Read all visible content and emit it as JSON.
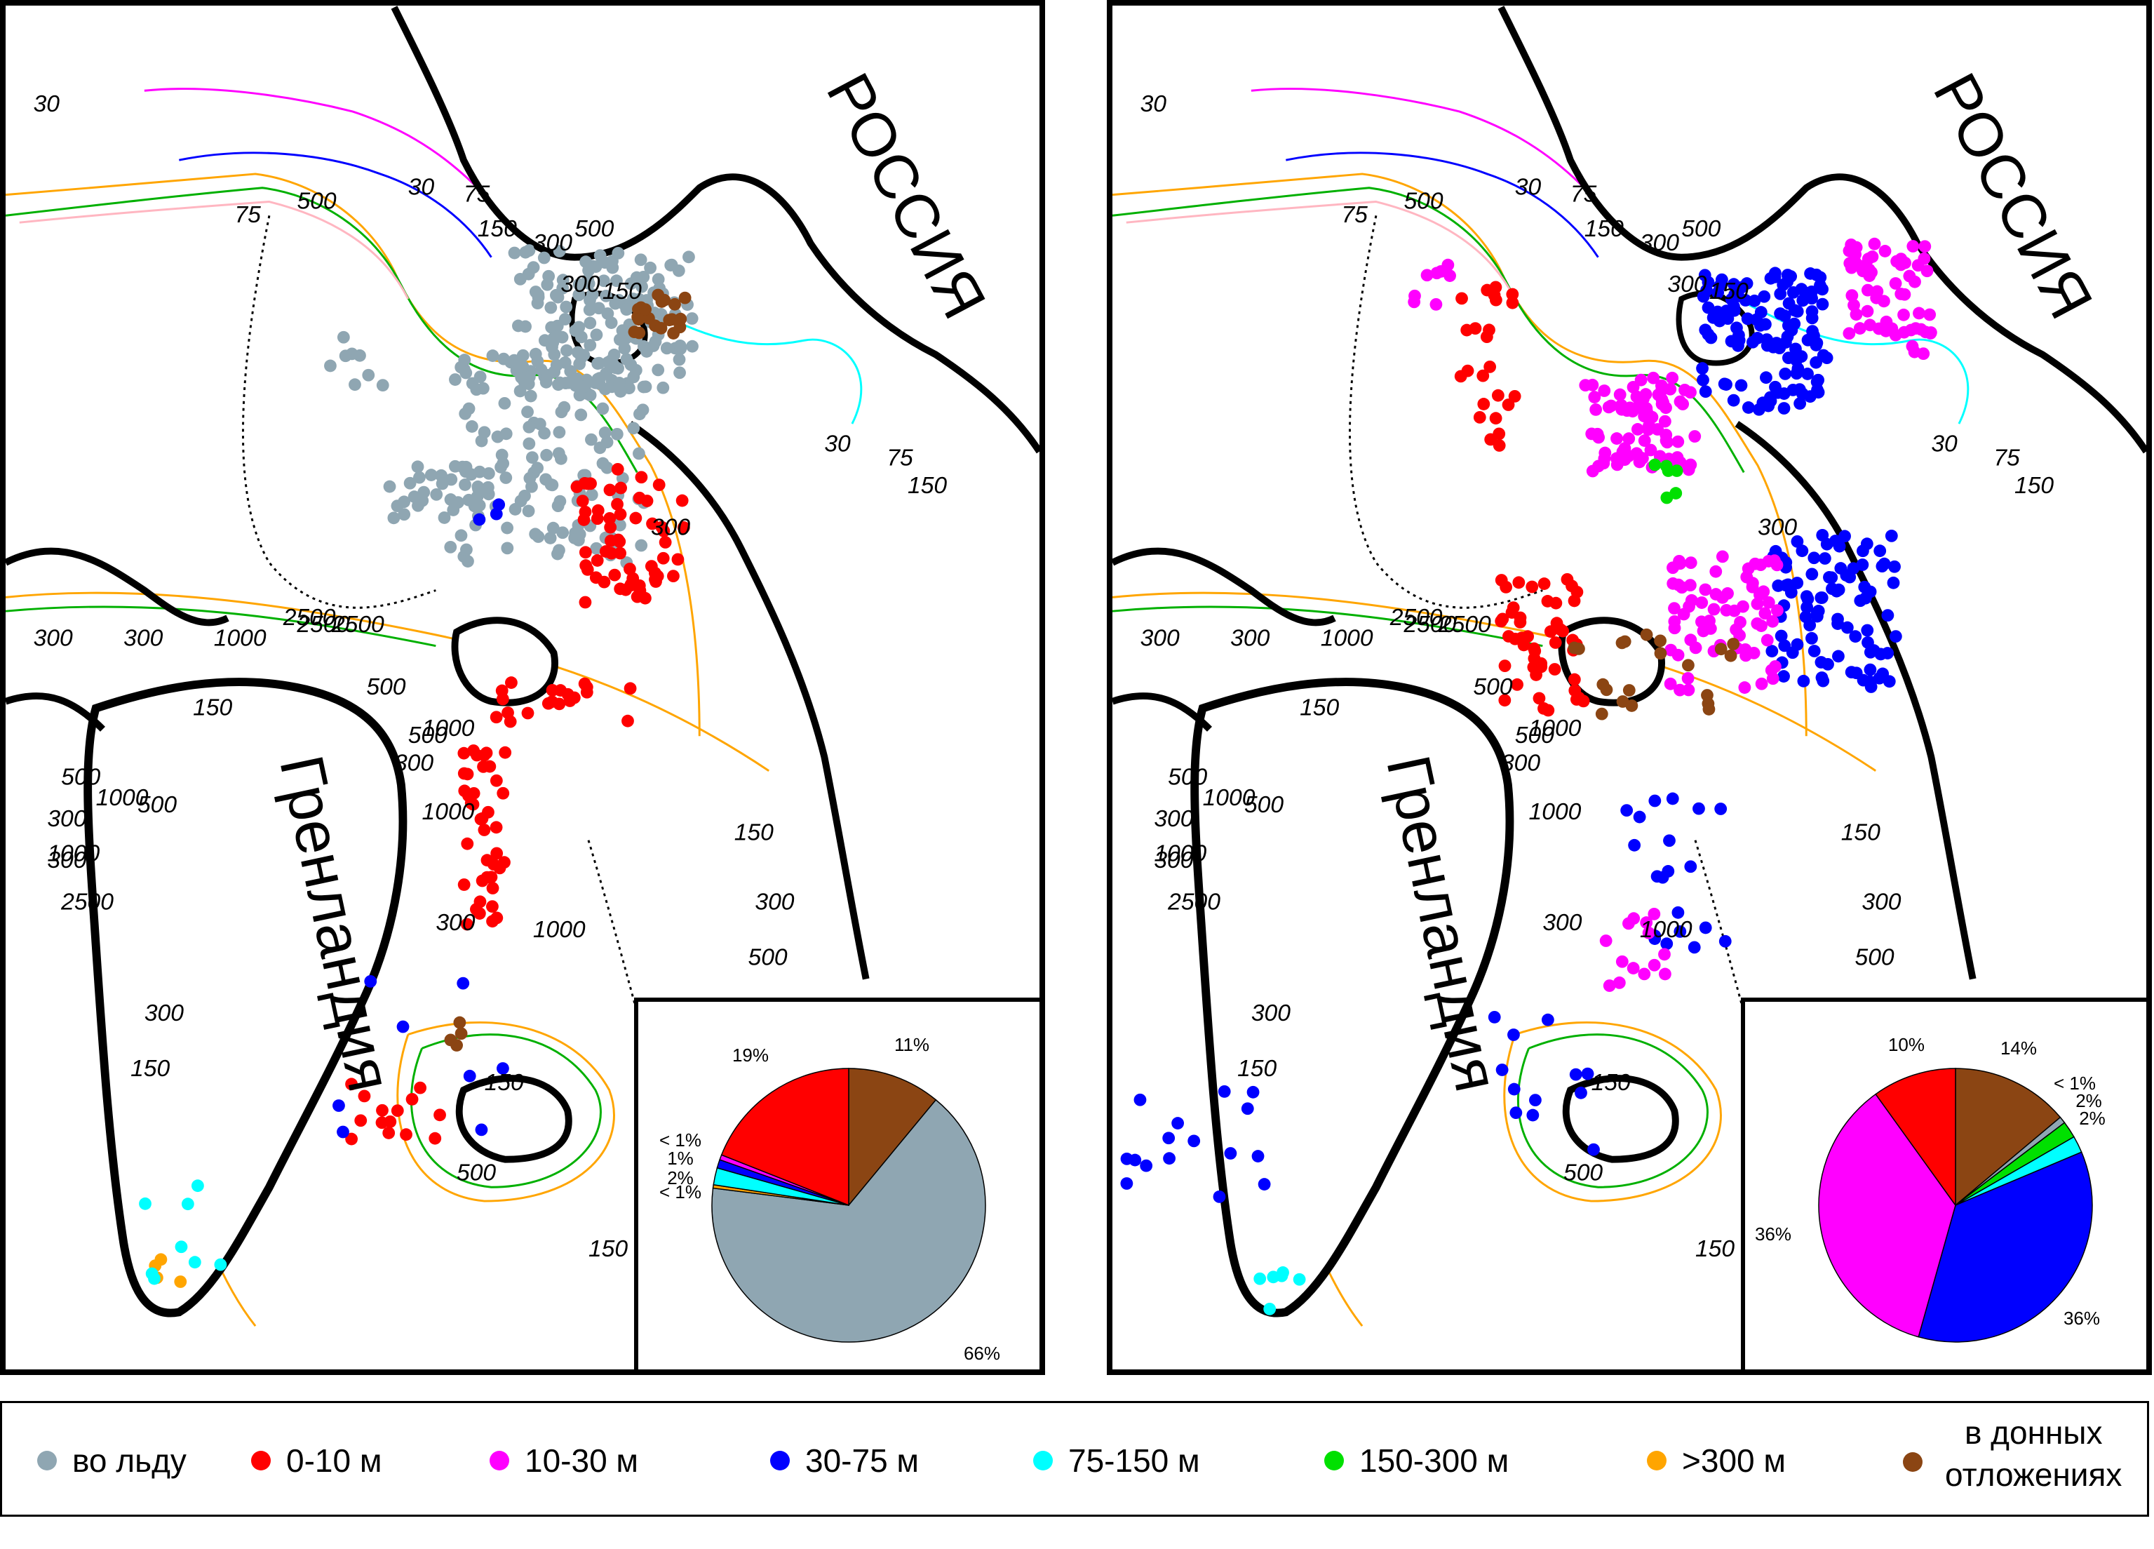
{
  "maps": [
    {
      "country_labels": {
        "russia": "РОССИЯ",
        "greenland": "Гренландия"
      },
      "contour_labels": [
        "30",
        "75",
        "500",
        "30",
        "75",
        "150",
        "300",
        "500",
        "300",
        "150",
        "30",
        "75",
        "150",
        "300",
        "2500",
        "1000",
        "300",
        "300",
        "500",
        "1000",
        "2500",
        "300",
        "500",
        "1000",
        "300",
        "500",
        "1000",
        "150",
        "300",
        "500",
        "300",
        "150",
        "1000",
        "300",
        "150",
        "500",
        "1000",
        "150",
        "300",
        "2500",
        "150",
        "500",
        "1000",
        "2500"
      ],
      "pie": {
        "slices": [
          {
            "category": "в донных отложениях",
            "value": 11,
            "color": "#8B4513",
            "label": "11%"
          },
          {
            "category": "во льду",
            "value": 66,
            "color": "#8FA6B2",
            "label": "66%"
          },
          {
            "category": ">300 м",
            "value": 0.4,
            "color": "#FFA500",
            "label": "< 1%"
          },
          {
            "category": "75-150 м",
            "value": 2,
            "color": "#00FFFF",
            "label": "2%"
          },
          {
            "category": "30-75 м",
            "value": 1,
            "color": "#0000FF",
            "label": "1%"
          },
          {
            "category": "10-30 м",
            "value": 0.6,
            "color": "#FF00FF",
            "label": "< 1%"
          },
          {
            "category": "0-10 м",
            "value": 19,
            "color": "#FF0000",
            "label": "19%"
          }
        ]
      }
    },
    {
      "country_labels": {
        "russia": "РОССИЯ",
        "greenland": "Гренландия"
      },
      "contour_labels": [
        "30",
        "75",
        "500",
        "30",
        "75",
        "150",
        "300",
        "500",
        "300",
        "150",
        "30",
        "75",
        "150",
        "300",
        "2500",
        "1000",
        "300",
        "300",
        "500",
        "1000",
        "2500",
        "300",
        "500",
        "1000",
        "300",
        "500",
        "1000",
        "150",
        "300",
        "500",
        "300",
        "150",
        "1000",
        "300",
        "150",
        "500",
        "1000",
        "150",
        "300",
        "2500",
        "150",
        "500",
        "1000",
        "2500"
      ],
      "pie": {
        "slices": [
          {
            "category": "в донных отложениях",
            "value": 14,
            "color": "#8B4513",
            "label": "14%"
          },
          {
            "category": "во льду",
            "value": 0.8,
            "color": "#8FA6B2",
            "label": "< 1%"
          },
          {
            "category": "150-300 м",
            "value": 2,
            "color": "#00E000",
            "label": "2%"
          },
          {
            "category": "75-150 м",
            "value": 2,
            "color": "#00FFFF",
            "label": "2%"
          },
          {
            "category": "30-75 м",
            "value": 36,
            "color": "#0000FF",
            "label": "36%"
          },
          {
            "category": "10-30 м",
            "value": 36,
            "color": "#FF00FF",
            "label": "36%"
          },
          {
            "category": "0-10 м",
            "value": 10,
            "color": "#FF0000",
            "label": "10%"
          }
        ]
      }
    }
  ],
  "legend": [
    {
      "label": "во льду",
      "color": "#8FA6B2"
    },
    {
      "label": "0-10 м",
      "color": "#FF0000"
    },
    {
      "label": "10-30 м",
      "color": "#FF00FF"
    },
    {
      "label": "30-75 м",
      "color": "#0000FF"
    },
    {
      "label": "75-150 м",
      "color": "#00FFFF"
    },
    {
      "label": "150-300 м",
      "color": "#00E000"
    },
    {
      "label": ">300 м",
      "color": "#FFA500"
    },
    {
      "label_line1": "в донных",
      "label_line2": "отложениях",
      "color": "#8B4513"
    }
  ],
  "contour_colors": {
    "30": "#FF00FF",
    "75": "#0000FF",
    "150": "#00FFFF",
    "300": "#FFB6C1",
    "500": "#00B000",
    "1000": "#FFA500",
    "2500": "#000000"
  }
}
